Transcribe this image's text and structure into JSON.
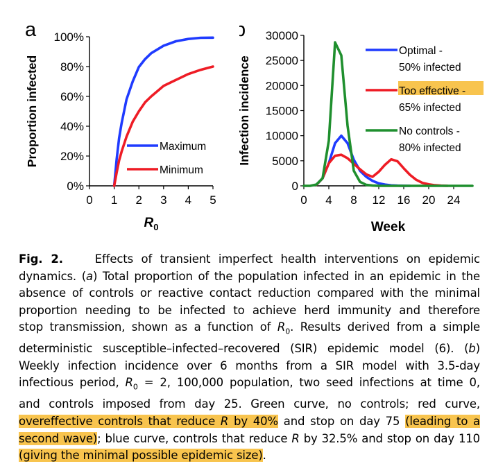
{
  "chart_data": [
    {
      "panel_letter": "a",
      "type": "line",
      "ylabel": "Proportion infected",
      "xlabel": "R",
      "xlabel_sub": "0",
      "x_ticks": [
        "0",
        "1",
        "2",
        "3",
        "4",
        "5"
      ],
      "y_ticks": [
        "0%",
        "20%",
        "40%",
        "60%",
        "80%",
        "100%"
      ],
      "xlim": [
        0,
        5
      ],
      "ylim": [
        0,
        100
      ],
      "grid": false,
      "legend_position": "center-right",
      "series": [
        {
          "name": "Maximum",
          "color": "#1f3bff",
          "x": [
            1.0,
            1.1,
            1.2,
            1.3,
            1.5,
            1.75,
            2.0,
            2.25,
            2.5,
            3.0,
            3.5,
            4.0,
            4.5,
            5.0
          ],
          "y": [
            0,
            18,
            32,
            42,
            58,
            70,
            79.7,
            85,
            89,
            94,
            97,
            98.5,
            99.3,
            99.4
          ]
        },
        {
          "name": "Minimum",
          "color": "#ee1c25",
          "x": [
            1.0,
            1.1,
            1.2,
            1.3,
            1.5,
            1.75,
            2.0,
            2.25,
            2.5,
            3.0,
            3.5,
            4.0,
            4.5,
            5.0
          ],
          "y": [
            0,
            9,
            17,
            23,
            33,
            43,
            50,
            56,
            60,
            67,
            71,
            75,
            77.8,
            80
          ]
        }
      ]
    },
    {
      "panel_letter": "b",
      "type": "line",
      "ylabel": "Infection incidence",
      "xlabel": "Week",
      "x_ticks": [
        "0",
        "4",
        "8",
        "12",
        "16",
        "20",
        "24"
      ],
      "y_ticks": [
        "0",
        "5000",
        "10000",
        "15000",
        "20000",
        "25000",
        "30000"
      ],
      "xlim": [
        0,
        27
      ],
      "ylim": [
        0,
        30000
      ],
      "grid": false,
      "legend_position": "right",
      "series": [
        {
          "name": "Optimal",
          "legend_lines": [
            "Optimal -",
            "50% infected"
          ],
          "color": "#1f3bff",
          "x": [
            2,
            3,
            4,
            5,
            6,
            7,
            8,
            9,
            10,
            11,
            12,
            13,
            14,
            15,
            16,
            17
          ],
          "y": [
            200,
            1500,
            4500,
            8500,
            10000,
            8500,
            5200,
            3000,
            1800,
            1000,
            500,
            250,
            100,
            40,
            10,
            0
          ]
        },
        {
          "name": "Too effective",
          "legend_lines": [
            "Too effective -",
            "65% infected"
          ],
          "color": "#ee1c25",
          "x": [
            2,
            3,
            4,
            5,
            6,
            7,
            8,
            9,
            10,
            11,
            12,
            13,
            14,
            15,
            16,
            17,
            18,
            19,
            20,
            21,
            22,
            23
          ],
          "y": [
            200,
            1500,
            4500,
            6000,
            6200,
            5500,
            4400,
            3300,
            2300,
            1800,
            2800,
            4200,
            5300,
            4900,
            3500,
            2200,
            1200,
            600,
            300,
            120,
            40,
            0
          ]
        },
        {
          "name": "No controls",
          "legend_lines": [
            "No controls -",
            "80% infected"
          ],
          "color": "#1f8f2e",
          "x": [
            0,
            1,
            2,
            3,
            4,
            5,
            6,
            7,
            8,
            9,
            10,
            11,
            12,
            13,
            14,
            15,
            16,
            17,
            18,
            19,
            20,
            21,
            22,
            23,
            24,
            25,
            26,
            27
          ],
          "y": [
            0,
            0,
            250,
            1500,
            9000,
            28600,
            26000,
            12000,
            3000,
            800,
            200,
            50,
            10,
            0,
            0,
            0,
            0,
            0,
            0,
            0,
            0,
            0,
            0,
            0,
            0,
            0,
            0,
            0
          ]
        }
      ]
    }
  ],
  "caption": {
    "label": "Fig. 2.",
    "lines": [
      [
        {
          "t": "Effects of transient imperfect health interventions on epidemic"
        }
      ],
      [
        {
          "t": "dynamics. ("
        },
        {
          "t": "a",
          "i": true
        },
        {
          "t": ") Total proportion of the population infected in an epidemic in the"
        }
      ],
      [
        {
          "t": "absence of controls or reactive contact reduction compared with the minimal"
        }
      ],
      [
        {
          "t": "proportion needing to be infected to achieve herd immunity and therefore"
        }
      ],
      [
        {
          "t": "stop transmission, shown as a function of "
        },
        {
          "t": "R",
          "i": true
        },
        {
          "t": "0",
          "sub": true
        },
        {
          "t": ". Results derived from a simple"
        }
      ],
      [
        {
          "t": "deterministic susceptible–infected–recovered (SIR) epidemic model (6). ("
        },
        {
          "t": "b",
          "i": true
        },
        {
          "t": ")"
        }
      ],
      [
        {
          "t": "Weekly infection incidence over 6 months from a SIR model with 3.5-day"
        }
      ],
      [
        {
          "t": "infectious period, "
        },
        {
          "t": "R",
          "i": true
        },
        {
          "t": "0",
          "sub": true
        },
        {
          "t": " = 2, 100,000 population, two seed infections at time 0,"
        }
      ],
      [
        {
          "t": "and controls imposed from day 25. Green curve, no controls; red curve,"
        }
      ],
      [
        {
          "t": "overeffective controls that reduce ",
          "hl": true
        },
        {
          "t": "R",
          "i": true,
          "hl": true
        },
        {
          "t": " by 40%",
          "hl": true
        },
        {
          "t": " and stop on day 75 "
        },
        {
          "t": "(leading to a",
          "hl": true
        }
      ],
      [
        {
          "t": "second wave)",
          "hl": true
        },
        {
          "t": "; blue curve, controls that reduce "
        },
        {
          "t": "R",
          "i": true
        },
        {
          "t": " by 32.5% and stop on day 110"
        }
      ],
      [
        {
          "t": "(giving the minimal possible epidemic size)",
          "hl": true
        },
        {
          "t": "."
        }
      ]
    ]
  }
}
